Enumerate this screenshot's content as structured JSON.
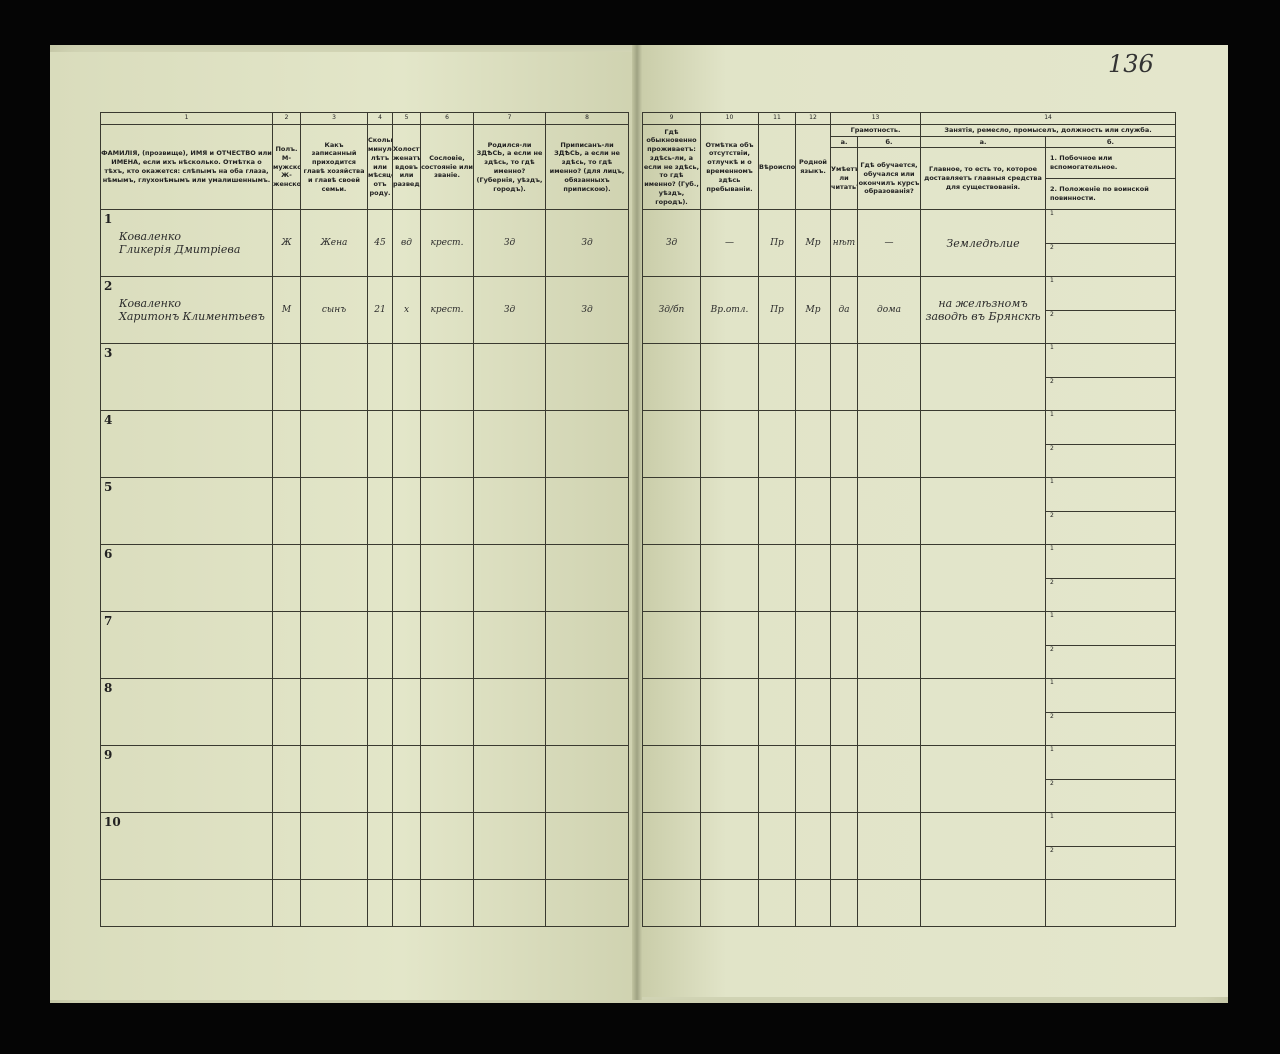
{
  "page_number": "136",
  "left_headers": {
    "numbers": [
      "1",
      "2",
      "3",
      "4",
      "5",
      "6",
      "7",
      "8"
    ],
    "labels": [
      "ФАМИЛІЯ, (прозвище), ИМЯ и ОТЧЕСТВО или ИМЕНА, если ихъ нѣсколько. Отмѣтка о тѣхъ, кто окажется: слѣпымъ на оба глаза, нѣмымъ, глухонѣмымъ или умалишеннымъ.",
      "Полъ. М-мужской. Ж-женской.",
      "Какъ записанный приходится главѣ хозяйства и главѣ своей семьи.",
      "Сколько минуло лѣтъ или мѣсяцевъ отъ роду.",
      "Холостъ, женатъ, вдовъ или разведенъ.",
      "Сословіе, состояніе или званіе.",
      "Родился-ли ЗДѢСЬ, а если не здѣсь, то гдѣ именно? (Губернія, уѣздъ, городъ).",
      "Приписанъ-ли ЗДѢСЬ, а если не здѣсь, то гдѣ именно? (для лицъ, обязанныхъ припискою)."
    ]
  },
  "right_headers": {
    "numbers": [
      "9",
      "10",
      "11",
      "12",
      "13",
      "14"
    ],
    "col9": "Гдѣ обыкновенно проживаетъ: здѣсь-ли, а если не здѣсь, то гдѣ именно? (Губ., уѣздъ, городъ).",
    "col10": "Отмѣтка объ отсутствіи, отлучкѣ и о временномъ здѣсь пребываніи.",
    "col11": "Вѣроисповѣданіе.",
    "col12": "Родной языкъ.",
    "col13_title": "Грамотность.",
    "col13a_letter": "а.",
    "col13a": "Умѣетъ-ли читать?",
    "col13b_letter": "б.",
    "col13b": "Гдѣ обучается, обучался или окончилъ курсъ образованія?",
    "col14_title": "Занятія, ремесло, промыселъ, должность или служба.",
    "col14a_letter": "а.",
    "col14a": "Главное, то есть то, которое доставляетъ главныя средства для существованія.",
    "col14b_letter": "б.",
    "col14b_1": "1. Побочное или вспомогательное.",
    "col14b_2": "2. Положеніе по воинской повинности."
  },
  "rows": [
    {
      "n": "1",
      "name1": "Коваленко",
      "name2": "Гликерія Дмитріева",
      "sex": "Ж",
      "relation": "Жена",
      "age": "45",
      "marital": "вд",
      "estate": "крест.",
      "born": "Зд",
      "registered": "Зд",
      "residence": "Зд",
      "absence": "—",
      "religion": "Пр",
      "language": "Мр",
      "literate": "нѣт",
      "education": "—",
      "occupation": "Земледѣлие",
      "sub1": "1",
      "sub2": "2"
    },
    {
      "n": "2",
      "name1": "Коваленко",
      "name2": "Харитонъ Климентьевъ",
      "sex": "М",
      "relation": "сынъ",
      "age": "21",
      "marital": "х",
      "estate": "крест.",
      "born": "Зд",
      "registered": "Зд",
      "residence": "Зд/бп",
      "absence": "Вр.отл.",
      "religion": "Пр",
      "language": "Мр",
      "literate": "да",
      "education": "дома",
      "occupation": "на желѣзномъ заводѣ въ Брянскѣ",
      "sub1": "1",
      "sub2": "2"
    },
    {
      "n": "3",
      "sub1": "1",
      "sub2": "2"
    },
    {
      "n": "4",
      "sub1": "1",
      "sub2": "2"
    },
    {
      "n": "5",
      "sub1": "1",
      "sub2": "2"
    },
    {
      "n": "6",
      "sub1": "1",
      "sub2": "2"
    },
    {
      "n": "7",
      "sub1": "1",
      "sub2": "2"
    },
    {
      "n": "8",
      "sub1": "1",
      "sub2": "2"
    },
    {
      "n": "9",
      "sub1": "1",
      "sub2": "2"
    },
    {
      "n": "10",
      "sub1": "1",
      "sub2": "2"
    }
  ]
}
